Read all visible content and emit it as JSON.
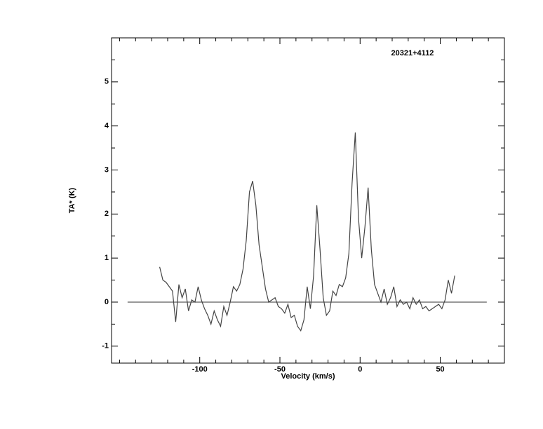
{
  "chart_data": {
    "type": "line",
    "title": "20321+4112",
    "x_label": "Velocity (km/s)",
    "y_label": "TA* (K)",
    "xlim": [
      -155,
      90
    ],
    "ylim": [
      -1.385,
      6.0
    ],
    "xticks": [
      -100,
      -50,
      0,
      50
    ],
    "yticks": [
      -1,
      0,
      1,
      2,
      3,
      4,
      5
    ],
    "xminorticks": [
      -150,
      -140,
      -130,
      -120,
      -110,
      -90,
      -80,
      -70,
      -60,
      -40,
      -30,
      -20,
      -10,
      10,
      20,
      30,
      40,
      60,
      70,
      80
    ],
    "yminorticks": [
      -0.5,
      0.5,
      1.5,
      2.5,
      3.5,
      4.5,
      5.5
    ],
    "baseline": {
      "x": [
        -145,
        79
      ],
      "y": 0
    },
    "series": [
      {
        "color": "#444444",
        "x": [
          -125,
          -123,
          -121,
          -119,
          -117,
          -115,
          -113,
          -111,
          -109,
          -107,
          -105,
          -103,
          -101,
          -99,
          -97,
          -95,
          -93,
          -91,
          -89,
          -87,
          -85,
          -83,
          -81,
          -79,
          -77,
          -75,
          -73,
          -71,
          -69,
          -67,
          -65,
          -63,
          -61,
          -59,
          -57,
          -55,
          -53,
          -51,
          -49,
          -47,
          -45,
          -43,
          -41,
          -39,
          -37,
          -35,
          -33,
          -31,
          -29,
          -27,
          -25,
          -23,
          -21,
          -19,
          -17,
          -15,
          -13,
          -11,
          -9,
          -7,
          -5,
          -3,
          -1,
          1,
          3,
          5,
          7,
          9,
          11,
          13,
          15,
          17,
          19,
          21,
          23,
          25,
          27,
          29,
          31,
          33,
          35,
          37,
          39,
          41,
          43,
          45,
          47,
          49,
          51,
          53,
          55,
          57,
          59
        ],
        "values": [
          0.8,
          0.5,
          0.45,
          0.35,
          0.25,
          -0.45,
          0.4,
          0.1,
          0.3,
          -0.2,
          0.05,
          0.0,
          0.35,
          0.05,
          -0.15,
          -0.3,
          -0.5,
          -0.2,
          -0.4,
          -0.55,
          -0.1,
          -0.3,
          0.0,
          0.35,
          0.25,
          0.4,
          0.75,
          1.4,
          2.5,
          2.75,
          2.2,
          1.3,
          0.8,
          0.3,
          0.0,
          0.05,
          0.1,
          -0.1,
          -0.15,
          -0.25,
          -0.05,
          -0.35,
          -0.3,
          -0.55,
          -0.65,
          -0.4,
          0.35,
          -0.15,
          0.6,
          2.2,
          1.2,
          0.1,
          -0.3,
          -0.2,
          0.25,
          0.15,
          0.4,
          0.35,
          0.55,
          1.1,
          2.7,
          3.85,
          1.9,
          1.0,
          1.7,
          2.6,
          1.2,
          0.4,
          0.2,
          0.0,
          0.3,
          -0.05,
          0.1,
          0.35,
          -0.1,
          0.05,
          -0.05,
          0.0,
          -0.15,
          0.1,
          -0.05,
          0.05,
          -0.15,
          -0.1,
          -0.2,
          -0.15,
          -0.1,
          -0.05,
          -0.15,
          0.05,
          0.5,
          0.2,
          0.6
        ]
      }
    ]
  }
}
